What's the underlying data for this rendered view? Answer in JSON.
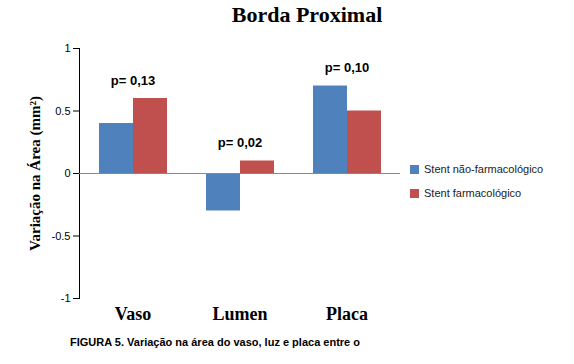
{
  "chart_data": {
    "type": "bar",
    "title": "Borda Proximal",
    "y_label": "Variação na Área (mm²)",
    "categories": [
      "Vaso",
      "Lumen",
      "Placa"
    ],
    "series": [
      {
        "name": "Stent não-farmacológico",
        "color": "#4f81bd",
        "values": [
          0.4,
          -0.3,
          0.7
        ]
      },
      {
        "name": "Stent farmacológico",
        "color": "#c0504d",
        "values": [
          0.6,
          0.1,
          0.5
        ]
      }
    ],
    "ylim": [
      -1,
      1
    ],
    "yticks": [
      -1,
      -0.5,
      0,
      0.5,
      1
    ],
    "grid": false,
    "legend": "right",
    "annotations": [
      {
        "category": "Vaso",
        "text": "p= 0,13"
      },
      {
        "category": "Lumen",
        "text": "p= 0,02"
      },
      {
        "category": "Placa",
        "text": "p= 0,10"
      }
    ],
    "caption": "FIGURA 5. Variação na área do vaso, luz e placa entre o"
  }
}
